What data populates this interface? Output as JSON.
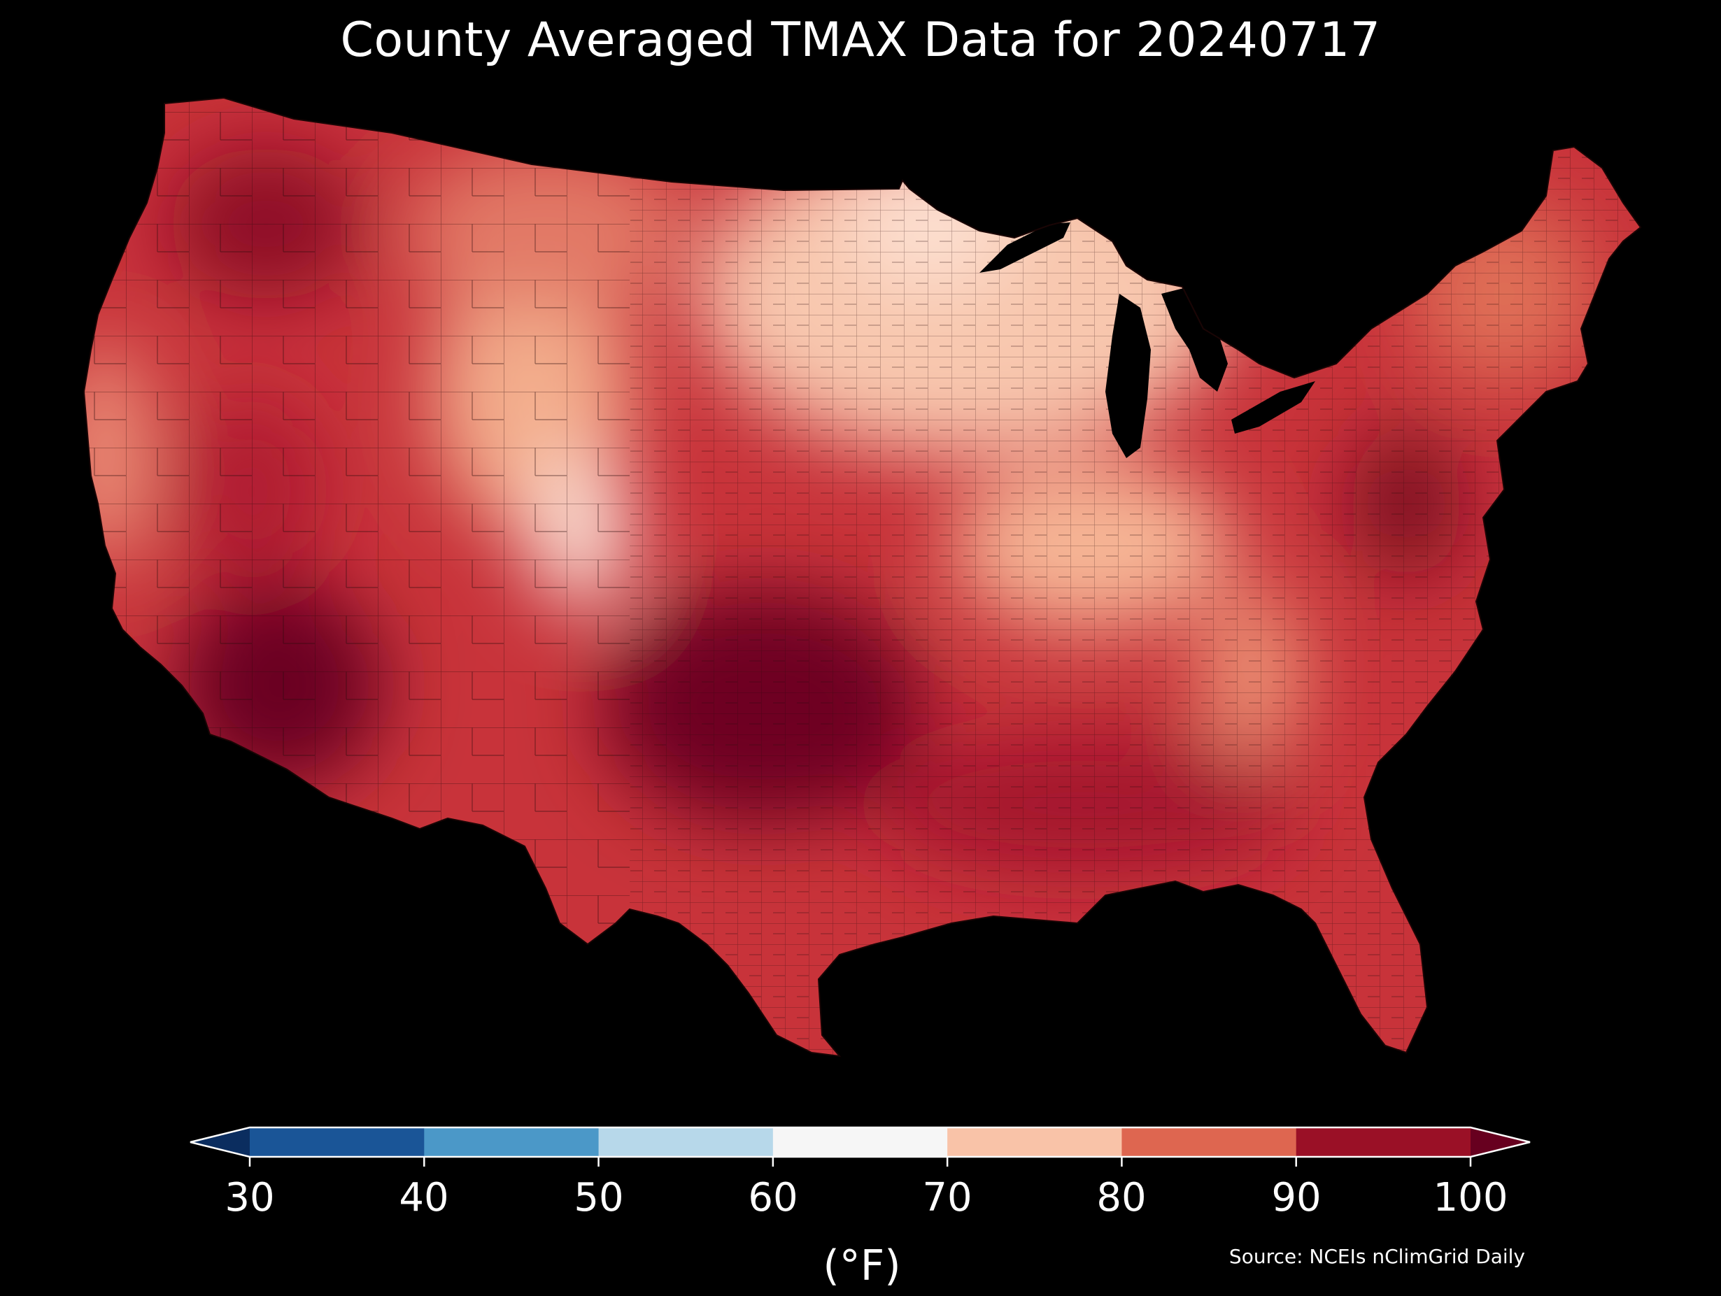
{
  "title": "County Averaged TMAX Data for 20240717",
  "colorbar": {
    "ticks": [
      "30",
      "40",
      "50",
      "60",
      "70",
      "80",
      "90",
      "100"
    ],
    "unit": "(°F)",
    "bins": [
      {
        "range": [
          30,
          40
        ],
        "color": "#1a5597"
      },
      {
        "range": [
          40,
          50
        ],
        "color": "#4b98c8"
      },
      {
        "range": [
          50,
          60
        ],
        "color": "#b7d8ea"
      },
      {
        "range": [
          60,
          70
        ],
        "color": "#f6f6f6"
      },
      {
        "range": [
          70,
          80
        ],
        "color": "#f9c3a8"
      },
      {
        "range": [
          80,
          90
        ],
        "color": "#de6650"
      },
      {
        "range": [
          90,
          100
        ],
        "color": "#9a1026"
      }
    ],
    "under_color": "#0b2d5f",
    "over_color": "#67001f"
  },
  "source": "Source: NCEIs nClimGrid Daily",
  "map": {
    "region": "Contiguous United States (counties)",
    "colors": {
      "background": "#000000",
      "base": "#c8333a",
      "lakes": "#000000",
      "county_lines": "#2a0a0a"
    },
    "hot_spots_over_100": [
      "Texas",
      "Oklahoma",
      "Arizona",
      "Nevada",
      "Washington/Oregon interior",
      "Virginia/Maryland"
    ],
    "cool_spots_60_70": [
      "Minnesota",
      "Colorado Rockies",
      "Wyoming",
      "Northern California coast"
    ]
  }
}
